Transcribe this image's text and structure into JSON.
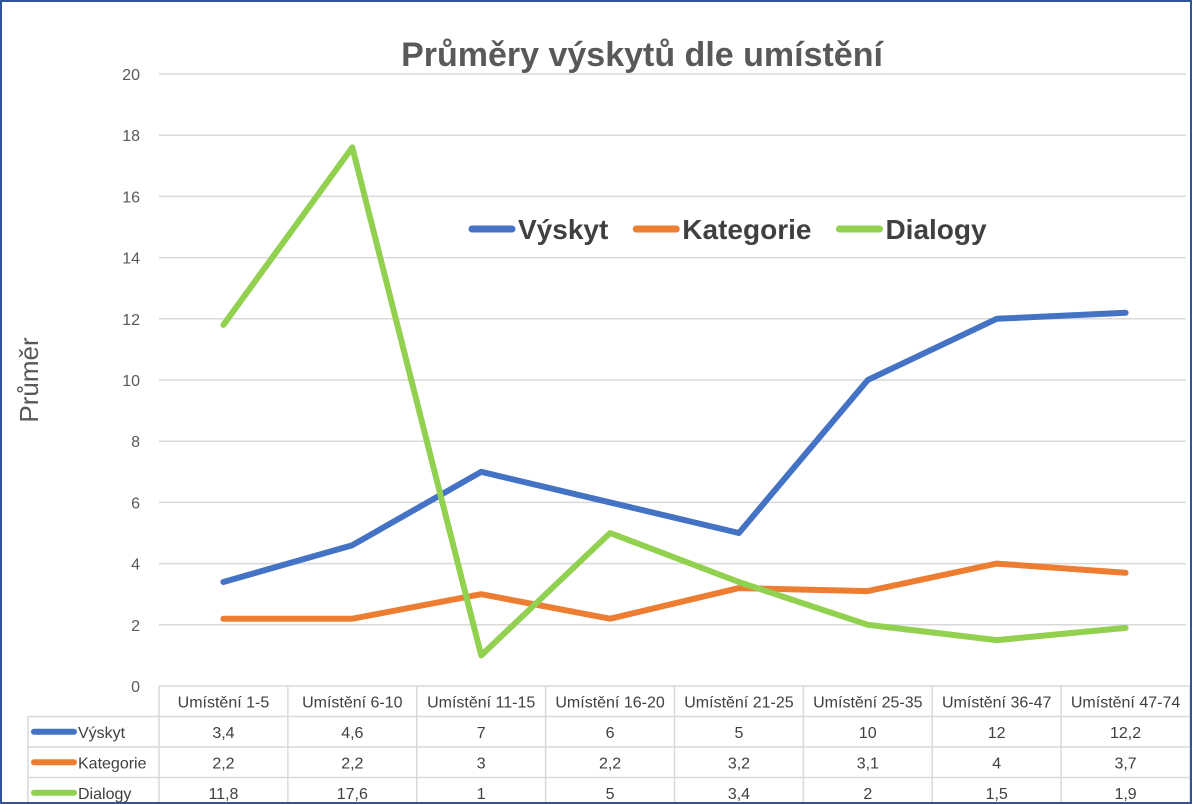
{
  "chart_data": {
    "type": "line",
    "title": "Průměry výskytů dle umístění",
    "xlabel": "",
    "ylabel": "Průměr",
    "ylim": [
      0,
      20
    ],
    "yticks": [
      0,
      2,
      4,
      6,
      8,
      10,
      12,
      14,
      16,
      18,
      20
    ],
    "grid": true,
    "legend_position": "top-right",
    "categories": [
      "Umístění  1-5",
      "Umístění  6-10",
      "Umístění  11-15",
      "Umístění  16-20",
      "Umístění  21-25",
      "Umístění  25-35",
      "Umístění  36-47",
      "Umístění  47-74"
    ],
    "series": [
      {
        "name": "Výskyt",
        "color": "#4472c4",
        "values": [
          3.4,
          4.6,
          7,
          6,
          5,
          10,
          12,
          12.2
        ],
        "labels": [
          "3,4",
          "4,6",
          "7",
          "6",
          "5",
          "10",
          "12",
          "12,2"
        ]
      },
      {
        "name": "Kategorie",
        "color": "#ed7d31",
        "values": [
          2.2,
          2.2,
          3,
          2.2,
          3.2,
          3.1,
          4,
          3.7
        ],
        "labels": [
          "2,2",
          "2,2",
          "3",
          "2,2",
          "3,2",
          "3,1",
          "4",
          "3,7"
        ]
      },
      {
        "name": "Dialogy",
        "color": "#92d050",
        "values": [
          11.8,
          17.6,
          1,
          5,
          3.4,
          2,
          1.5,
          1.9
        ],
        "labels": [
          "11,8",
          "17,6",
          "1",
          "5",
          "3,4",
          "2",
          "1,5",
          "1,9"
        ]
      }
    ],
    "data_table": true
  }
}
